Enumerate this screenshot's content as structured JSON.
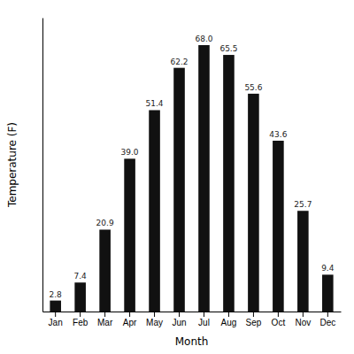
{
  "chart_data": {
    "type": "bar",
    "xlabel": "Month",
    "ylabel": "Temperature (F)",
    "categories": [
      "Jan",
      "Feb",
      "Mar",
      "Apr",
      "May",
      "Jun",
      "Jul",
      "Aug",
      "Sep",
      "Oct",
      "Nov",
      "Dec"
    ],
    "values": [
      2.8,
      7.4,
      20.9,
      39.0,
      51.4,
      62.2,
      68.0,
      65.5,
      55.6,
      43.6,
      25.7,
      9.4
    ],
    "value_labels": [
      "2.8",
      "7.4",
      "20.9",
      "39.0",
      "51.4",
      "62.2",
      "68.0",
      "65.5",
      "55.6",
      "43.6",
      "25.7",
      "9.4"
    ],
    "color": "#111111",
    "ylim": [
      0,
      75
    ],
    "grid": false,
    "data_labels": true,
    "tick_labels": "x"
  }
}
